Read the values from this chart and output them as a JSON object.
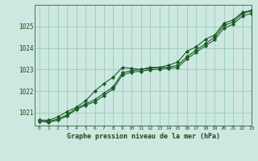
{
  "title": "Graphe pression niveau de la mer (hPa)",
  "background_color": "#cce8e0",
  "grid_color": "#99ccbb",
  "line_color": "#1a5c28",
  "xlim": [
    -0.5,
    23
  ],
  "ylim": [
    1020.4,
    1026.0
  ],
  "yticks": [
    1021,
    1022,
    1023,
    1024,
    1025
  ],
  "xticks": [
    0,
    1,
    2,
    3,
    4,
    5,
    6,
    7,
    8,
    9,
    10,
    11,
    12,
    13,
    14,
    15,
    16,
    17,
    18,
    19,
    20,
    21,
    22,
    23
  ],
  "hours": [
    0,
    1,
    2,
    3,
    4,
    5,
    6,
    7,
    8,
    9,
    10,
    11,
    12,
    13,
    14,
    15,
    16,
    17,
    18,
    19,
    20,
    21,
    22,
    23
  ],
  "line1": [
    1020.65,
    1020.65,
    1020.8,
    1021.05,
    1021.25,
    1021.55,
    1022.0,
    1022.35,
    1022.65,
    1023.1,
    1023.05,
    1023.0,
    1023.1,
    1023.1,
    1023.2,
    1023.35,
    1023.85,
    1024.05,
    1024.4,
    1024.6,
    1025.15,
    1025.3,
    1025.65,
    1025.75
  ],
  "line2": [
    1020.65,
    1020.6,
    1020.7,
    1020.9,
    1021.2,
    1021.4,
    1021.6,
    1021.9,
    1022.2,
    1022.85,
    1022.95,
    1023.0,
    1023.05,
    1023.1,
    1023.1,
    1023.2,
    1023.6,
    1023.9,
    1024.2,
    1024.5,
    1025.05,
    1025.2,
    1025.6,
    1025.7
  ],
  "line3": [
    1020.6,
    1020.55,
    1020.65,
    1020.85,
    1021.15,
    1021.35,
    1021.5,
    1021.8,
    1022.1,
    1022.75,
    1022.88,
    1022.92,
    1022.98,
    1023.02,
    1023.05,
    1023.1,
    1023.5,
    1023.8,
    1024.1,
    1024.38,
    1024.92,
    1025.1,
    1025.48,
    1025.6
  ]
}
